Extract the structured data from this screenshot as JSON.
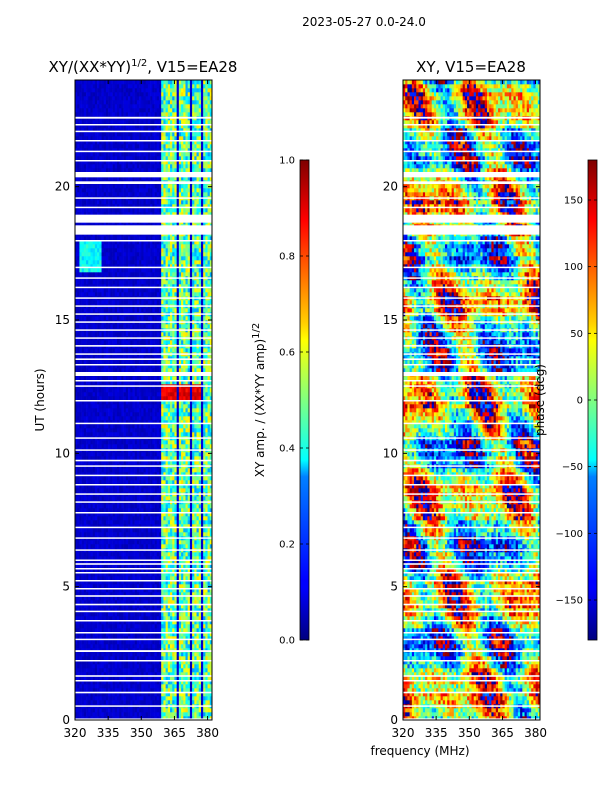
{
  "chart_data": [
    {
      "type": "heatmap",
      "title_main": "XY/(XX*YY)",
      "title_sup": "1/2",
      "title_tail": ", V15=EA28",
      "xlabel": "",
      "ylabel": "UT (hours)",
      "xlim": [
        320,
        382
      ],
      "ylim": [
        0,
        24
      ],
      "x_ticks": [
        320,
        335,
        350,
        365,
        380
      ],
      "x_tick_labels": [
        "320",
        "335",
        "350",
        "365",
        "380"
      ],
      "y_ticks": [
        0,
        5,
        10,
        15,
        20
      ],
      "y_tick_labels": [
        "0",
        "5",
        "10",
        "15",
        "20"
      ],
      "colormap": "jet",
      "colorbar": {
        "label_main": "XY amp. / (XX*YY amp)",
        "label_sup": "1/2",
        "vmin": 0.0,
        "vmax": 1.0,
        "ticks": [
          0.0,
          0.2,
          0.4,
          0.6,
          0.8,
          1.0
        ],
        "tick_labels": [
          "0.0",
          "0.2",
          "0.4",
          "0.6",
          "0.8",
          "1.0"
        ]
      },
      "bright_bands_mhz": [
        [
          359,
          366
        ],
        [
          367,
          372
        ],
        [
          373,
          377
        ],
        [
          378,
          382
        ]
      ],
      "high_value_patch": {
        "x": [
          359,
          377
        ],
        "ut": [
          12.0,
          12.6
        ],
        "value": 0.85
      },
      "low_value_region": {
        "x": [
          320,
          358
        ],
        "value": 0.05
      }
    },
    {
      "type": "heatmap",
      "title": "XY, V15=EA28",
      "xlabel": "frequency (MHz)",
      "ylabel": "",
      "xlim": [
        320,
        382
      ],
      "ylim": [
        0,
        24
      ],
      "x_ticks": [
        320,
        335,
        350,
        365,
        380
      ],
      "x_tick_labels": [
        "320",
        "335",
        "350",
        "365",
        "380"
      ],
      "y_ticks": [
        0,
        5,
        10,
        15,
        20
      ],
      "y_tick_labels": [
        "0",
        "5",
        "10",
        "15",
        "20"
      ],
      "colormap": "jet",
      "colorbar": {
        "label": "phase (deg)",
        "vmin": -180,
        "vmax": 180,
        "ticks": [
          -150,
          -100,
          -50,
          0,
          50,
          100,
          150
        ],
        "tick_labels": [
          "−150",
          "−100",
          "−50",
          "0",
          "50",
          "100",
          "150"
        ]
      }
    }
  ],
  "suptitle": "2023-05-27 0.0-24.0",
  "flagged_ut_gaps_hours": [
    [
      0.0,
      0.06
    ],
    [
      0.5,
      0.55
    ],
    [
      1.0,
      1.06
    ],
    [
      1.45,
      1.5
    ],
    [
      1.62,
      1.68
    ],
    [
      2.2,
      2.25
    ],
    [
      2.55,
      2.62
    ],
    [
      3.0,
      3.05
    ],
    [
      3.25,
      3.3
    ],
    [
      3.7,
      3.75
    ],
    [
      4.05,
      4.1
    ],
    [
      4.3,
      4.36
    ],
    [
      4.62,
      4.68
    ],
    [
      4.9,
      4.95
    ],
    [
      5.2,
      5.25
    ],
    [
      5.5,
      5.55
    ],
    [
      5.65,
      5.7
    ],
    [
      5.82,
      5.88
    ],
    [
      5.98,
      6.02
    ],
    [
      6.35,
      6.4
    ],
    [
      6.8,
      6.85
    ],
    [
      7.2,
      7.25
    ],
    [
      7.75,
      7.8
    ],
    [
      8.15,
      8.2
    ],
    [
      8.45,
      8.5
    ],
    [
      8.8,
      8.85
    ],
    [
      9.15,
      9.2
    ],
    [
      9.5,
      9.55
    ],
    [
      9.7,
      9.76
    ],
    [
      10.1,
      10.15
    ],
    [
      10.55,
      10.6
    ],
    [
      11.1,
      11.15
    ],
    [
      11.95,
      12.0
    ],
    [
      12.5,
      12.55
    ],
    [
      12.7,
      12.75
    ],
    [
      12.9,
      13.05
    ],
    [
      13.3,
      13.35
    ],
    [
      13.5,
      13.56
    ],
    [
      13.7,
      13.75
    ],
    [
      14.0,
      14.06
    ],
    [
      14.3,
      14.35
    ],
    [
      14.6,
      14.65
    ],
    [
      14.9,
      14.95
    ],
    [
      15.2,
      15.25
    ],
    [
      15.5,
      15.55
    ],
    [
      15.8,
      15.85
    ],
    [
      16.2,
      16.25
    ],
    [
      16.55,
      16.6
    ],
    [
      16.95,
      17.0
    ],
    [
      17.95,
      18.0
    ],
    [
      18.2,
      18.55
    ],
    [
      18.65,
      18.95
    ],
    [
      19.2,
      19.25
    ],
    [
      19.55,
      19.6
    ],
    [
      20.1,
      20.2
    ],
    [
      20.35,
      20.55
    ],
    [
      20.95,
      21.0
    ],
    [
      21.3,
      21.35
    ],
    [
      21.7,
      21.75
    ],
    [
      22.05,
      22.1
    ],
    [
      22.3,
      22.35
    ],
    [
      22.55,
      22.62
    ]
  ]
}
